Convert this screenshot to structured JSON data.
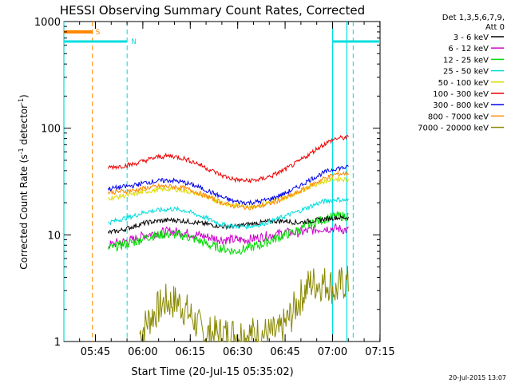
{
  "chart_data": {
    "type": "line",
    "title": "HESSI Observing Summary Count Rates, Corrected",
    "xlabel": "Start Time (20-Jul-15 05:35:02)",
    "ylabel_main": "Corrected Count Rate (s",
    "ylabel_sup1": "-1",
    "ylabel_mid": " detector",
    "ylabel_sup2": "-1",
    "ylabel_end": ")",
    "x_unit": "minutes after 05:35:02 UT",
    "xlim": [
      0,
      100
    ],
    "ylim": [
      1,
      1000
    ],
    "yscale": "log",
    "x_ticks": [
      "05:45",
      "06:00",
      "06:15",
      "06:30",
      "06:45",
      "07:00",
      "07:15"
    ],
    "y_ticks": [
      "1",
      "10",
      "100",
      "1000"
    ],
    "legend_header": [
      "Det 1,3,5,6,7,9,",
      "Att 0"
    ],
    "legend_position": "right",
    "timestamp": "20-Jul-2015 13:07",
    "series": [
      {
        "name": "3 - 6 keV",
        "color": "#000000",
        "x": [
          14,
          18,
          22,
          26,
          30,
          34,
          38,
          42,
          46,
          50,
          54,
          58,
          62,
          66,
          70,
          74,
          78,
          82,
          86,
          90
        ],
        "y": [
          10.5,
          11,
          12,
          13,
          13.5,
          13.8,
          13.5,
          13,
          12.5,
          12,
          12,
          12.5,
          13,
          13.5,
          13.5,
          13,
          13.5,
          14,
          14.5,
          14.5
        ]
      },
      {
        "name": "6 - 12 keV",
        "color": "#cc00cc",
        "x": [
          14,
          18,
          22,
          26,
          30,
          34,
          38,
          42,
          46,
          50,
          54,
          58,
          62,
          66,
          70,
          74,
          78,
          82,
          86,
          90
        ],
        "y": [
          8,
          8.5,
          9,
          10,
          10.5,
          10.8,
          10.5,
          10,
          9.5,
          9,
          9,
          9,
          9.5,
          10,
          10.5,
          10.5,
          11,
          11.5,
          11.5,
          11
        ]
      },
      {
        "name": "12 - 25 keV",
        "color": "#00dd00",
        "x": [
          14,
          18,
          22,
          26,
          30,
          34,
          38,
          42,
          46,
          50,
          54,
          58,
          62,
          66,
          70,
          74,
          78,
          82,
          86,
          90
        ],
        "y": [
          7.5,
          8,
          8.5,
          9.5,
          10,
          10.2,
          9.8,
          9,
          8,
          7.5,
          7,
          7.5,
          8,
          9,
          10,
          11,
          12.5,
          14,
          15,
          15
        ]
      },
      {
        "name": "25 - 50 keV",
        "color": "#00dddd",
        "x": [
          14,
          18,
          22,
          26,
          30,
          34,
          38,
          42,
          46,
          50,
          54,
          58,
          62,
          66,
          70,
          74,
          78,
          82,
          86,
          90
        ],
        "y": [
          13,
          14,
          15,
          16.5,
          17,
          17.5,
          17,
          15.5,
          14,
          12.5,
          12,
          12,
          12.5,
          13.5,
          15,
          16.5,
          18.5,
          20.5,
          21.5,
          21
        ]
      },
      {
        "name": "50 - 100 keV",
        "color": "#dddd00",
        "x": [
          14,
          18,
          22,
          26,
          30,
          34,
          38,
          42,
          46,
          50,
          54,
          58,
          62,
          66,
          70,
          74,
          78,
          82,
          86,
          90
        ],
        "y": [
          22,
          23,
          24,
          25.5,
          26.5,
          27,
          26,
          24.5,
          22,
          20,
          19,
          18.5,
          19,
          20.5,
          22.5,
          25,
          28.5,
          31.5,
          33.5,
          33
        ]
      },
      {
        "name": "100 - 300 keV",
        "color": "#ee0000",
        "x": [
          14,
          18,
          22,
          26,
          30,
          34,
          38,
          42,
          46,
          50,
          54,
          58,
          62,
          66,
          70,
          74,
          78,
          82,
          86,
          90
        ],
        "y": [
          43,
          44,
          46,
          50,
          54,
          55,
          52,
          47,
          41,
          36,
          33,
          32,
          33,
          36,
          41,
          48,
          58,
          70,
          80,
          82
        ]
      },
      {
        "name": "300 - 800 keV",
        "color": "#0000ee",
        "x": [
          14,
          18,
          22,
          26,
          30,
          34,
          38,
          42,
          46,
          50,
          54,
          58,
          62,
          66,
          70,
          74,
          78,
          82,
          86,
          90
        ],
        "y": [
          27,
          28,
          29,
          31,
          32,
          32.5,
          31,
          28.5,
          25.5,
          22.5,
          20.5,
          20,
          20.5,
          22,
          24.5,
          28,
          33,
          38,
          42,
          43
        ]
      },
      {
        "name": "800 - 7000 keV",
        "color": "#ff8800",
        "x": [
          14,
          18,
          22,
          26,
          30,
          34,
          38,
          42,
          46,
          50,
          54,
          58,
          62,
          66,
          70,
          74,
          78,
          82,
          86,
          90
        ],
        "y": [
          25,
          25.5,
          26,
          27.5,
          28.5,
          28.5,
          27.5,
          25,
          22.5,
          20,
          18.5,
          18,
          18.5,
          20,
          22,
          25,
          29,
          33.5,
          37,
          38
        ]
      },
      {
        "name": "7000 - 20000 keV",
        "color": "#888800",
        "x": [
          24,
          28,
          32,
          36,
          40,
          44,
          48,
          52,
          56,
          60,
          64,
          68,
          72,
          74,
          76,
          78,
          80,
          82,
          84,
          86,
          88,
          90
        ],
        "y": [
          1,
          1.5,
          2,
          2,
          1.5,
          1,
          1,
          1,
          1,
          1,
          1,
          1,
          1.5,
          2,
          2.5,
          3,
          3,
          3,
          3,
          2.5,
          3,
          3
        ]
      }
    ],
    "markers": {
      "s_label": "S",
      "n_label": "N",
      "s_bar": {
        "x": [
          0,
          9
        ],
        "y": 800
      },
      "n_bars": [
        {
          "x": [
            0,
            20
          ],
          "y": 650
        },
        {
          "x": [
            85,
            100
          ],
          "y": 650
        }
      ],
      "saa_dashed_x": [
        9,
        20,
        91.5
      ],
      "solid_cyan_x": [
        0,
        85,
        89.5
      ]
    }
  }
}
